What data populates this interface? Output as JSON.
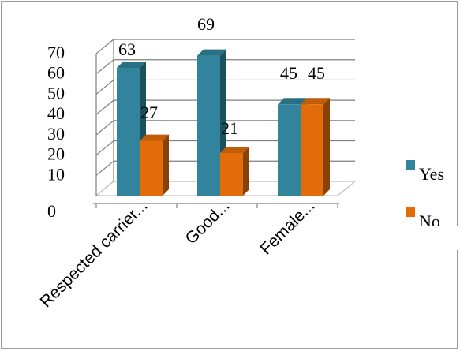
{
  "chart_data": {
    "type": "bar",
    "categories": [
      "Respected carrier...",
      "Good...",
      "Female..."
    ],
    "series": [
      {
        "name": "Yes",
        "values": [
          63,
          69,
          45
        ],
        "labels": [
          "63",
          "69",
          "45"
        ]
      },
      {
        "name": "No",
        "values": [
          27,
          21,
          45
        ],
        "labels": [
          "27",
          "21",
          "45"
        ]
      }
    ],
    "ylim": [
      0,
      70
    ],
    "yticks": [
      {
        "value": 0,
        "label": "0"
      },
      {
        "value": 10,
        "label": "10"
      },
      {
        "value": 20,
        "label": "20"
      },
      {
        "value": 30,
        "label": "30"
      },
      {
        "value": 40,
        "label": "40"
      },
      {
        "value": 50,
        "label": "50"
      },
      {
        "value": 60,
        "label": "60"
      },
      {
        "value": 70,
        "label": "70"
      }
    ],
    "title": "",
    "xlabel": "",
    "ylabel": "",
    "grid": true,
    "legend_position": "right",
    "colors": {
      "Yes": "#31849b",
      "No": "#e36c0a",
      "grid": "#7f7f7f",
      "floor": "#bfbfbf"
    },
    "style": "3d-clustered-column"
  }
}
